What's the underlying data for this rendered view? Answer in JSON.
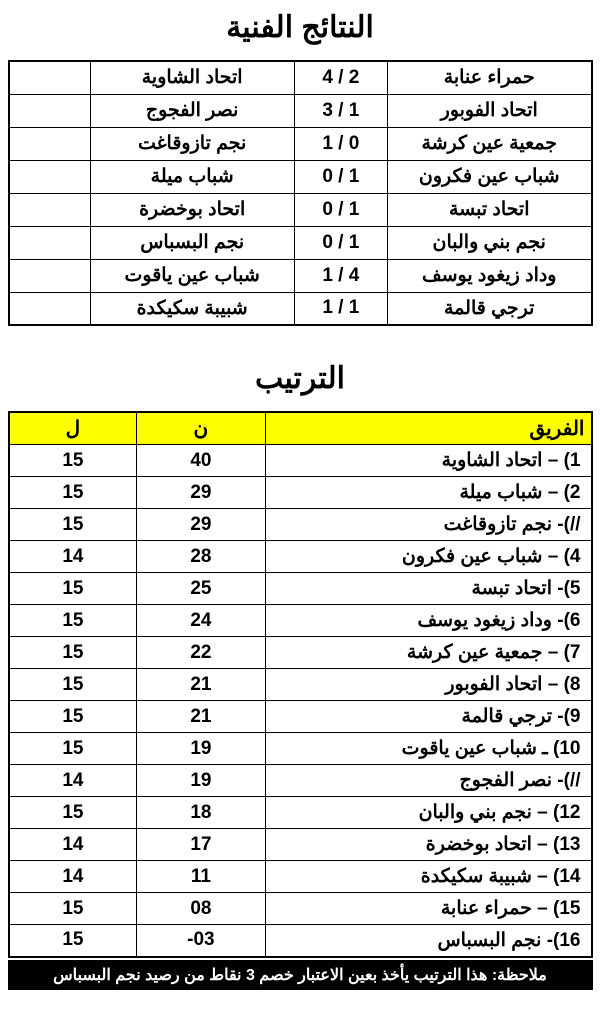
{
  "results": {
    "title": "النتائج الفنية",
    "rows": [
      {
        "home": "حمراء عنابة",
        "score": "4 / 2",
        "away": "اتحاد الشاوية"
      },
      {
        "home": "اتحاد الفوبور",
        "score": "3 / 1",
        "away": "نصر الفجوج"
      },
      {
        "home": "جمعية عين كرشة",
        "score": "1 / 0",
        "away": "نجم تازوقاغت"
      },
      {
        "home": "شباب عين فكرون",
        "score": "0 / 1",
        "away": "شباب ميلة"
      },
      {
        "home": "اتحاد تبسة",
        "score": "0 / 1",
        "away": "اتحاد بوخضرة"
      },
      {
        "home": "نجم بني والبان",
        "score": "0 / 1",
        "away": "نجم البسباس"
      },
      {
        "home": "وداد زيغود يوسف",
        "score": "1 / 4",
        "away": "شباب عين ياقوت"
      },
      {
        "home": "ترجي قالمة",
        "score": "1 / 1",
        "away": "شبيبة سكيكدة"
      }
    ]
  },
  "standings": {
    "title": "الترتيب",
    "headers": {
      "team": "الفريق",
      "pts": "ن",
      "gp": "ل"
    },
    "rows": [
      {
        "team": "1) – اتحاد الشاوية",
        "pts": "40",
        "gp": "15"
      },
      {
        "team": "2) – شباب ميلة",
        "pts": "29",
        "gp": "15"
      },
      {
        "team": "//)- نجم تازوقاغت",
        "pts": "29",
        "gp": "15"
      },
      {
        "team": "4) – شباب عين فكرون",
        "pts": "28",
        "gp": "14"
      },
      {
        "team": "5)- اتحاد تبسة",
        "pts": "25",
        "gp": "15"
      },
      {
        "team": "6)- وداد زيغود يوسف",
        "pts": "24",
        "gp": "15"
      },
      {
        "team": "7) – جمعية عين كرشة",
        "pts": "22",
        "gp": "15"
      },
      {
        "team": "8) – اتحاد الفوبور",
        "pts": "21",
        "gp": "15"
      },
      {
        "team": "9)- ترجي قالمة",
        "pts": "21",
        "gp": "15"
      },
      {
        "team": "10) ـ شباب عين ياقوت",
        "pts": "19",
        "gp": "15"
      },
      {
        "team": "//)- نصر الفجوج",
        "pts": "19",
        "gp": "14"
      },
      {
        "team": "12) – نجم بني والبان",
        "pts": "18",
        "gp": "15"
      },
      {
        "team": "13) – اتحاد بوخضرة",
        "pts": "17",
        "gp": "14"
      },
      {
        "team": "14) – شبيبة سكيكدة",
        "pts": "11",
        "gp": "14"
      },
      {
        "team": "15) – حمراء عنابة",
        "pts": "08",
        "gp": "15"
      },
      {
        "team": "16)- نجم البسباس",
        "pts": "03-",
        "gp": "15"
      }
    ]
  },
  "note": "ملاحظة: هذا الترتيب يأخذ بعين الاعتبار خصم 3 نقاط من رصيد نجم البسباس",
  "style": {
    "header_bg": "#ffff00",
    "border_color": "#000000",
    "note_bg": "#000000",
    "note_color": "#ffffff",
    "title_fontsize": 30,
    "cell_fontsize": 19
  }
}
